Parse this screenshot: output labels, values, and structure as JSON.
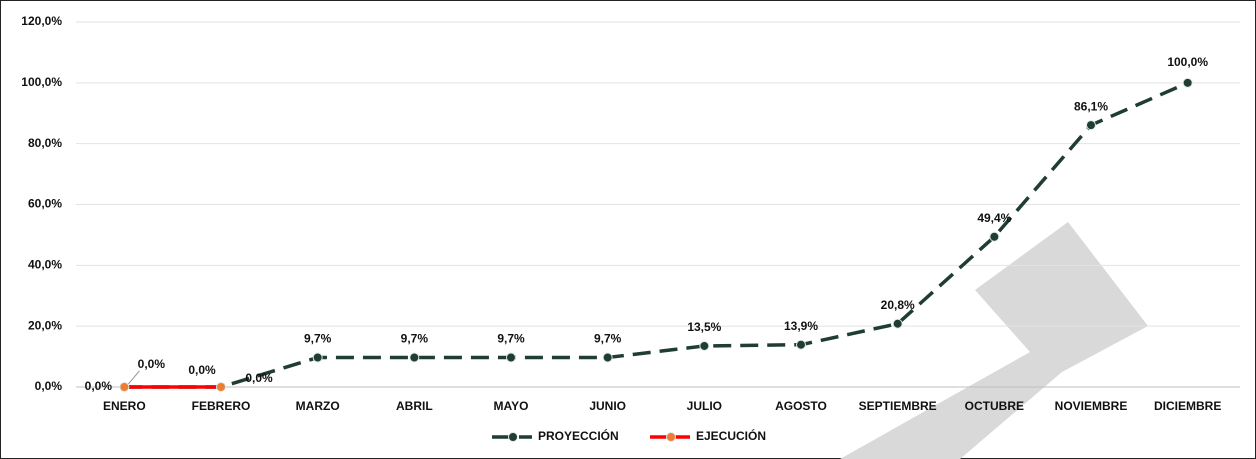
{
  "chart_data": {
    "type": "line",
    "categories": [
      "ENERO",
      "FEBRERO",
      "MARZO",
      "ABRIL",
      "MAYO",
      "JUNIO",
      "JULIO",
      "AGOSTO",
      "SEPTIEMBRE",
      "OCTUBRE",
      "NOVIEMBRE",
      "DICIEMBRE"
    ],
    "series": [
      {
        "name": "PROYECCIÓN",
        "color": "#1f3d33",
        "marker_color": "#1f3d33",
        "dashed": true,
        "values": [
          0,
          0,
          9.7,
          9.7,
          9.7,
          9.7,
          13.5,
          13.9,
          20.8,
          49.4,
          86.1,
          100
        ],
        "value_labels": [
          "0,0%",
          "0,0%",
          "9,7%",
          "9,7%",
          "9,7%",
          "9,7%",
          "13,5%",
          "13,9%",
          "20,8%",
          "49,4%",
          "86,1%",
          "100,0%"
        ]
      },
      {
        "name": "EJECUCIÓN",
        "color": "#ff0000",
        "marker_color": "#ed7d31",
        "dashed": false,
        "values": [
          0,
          0,
          null,
          null,
          null,
          null,
          null,
          null,
          null,
          null,
          null,
          null
        ],
        "value_labels": [
          "0,0%",
          "0,0%",
          null,
          null,
          null,
          null,
          null,
          null,
          null,
          null,
          null,
          null
        ]
      }
    ],
    "ylim": [
      0,
      120
    ],
    "yticks": [
      {
        "value": 0,
        "label": "0,0%"
      },
      {
        "value": 20,
        "label": "20,0%"
      },
      {
        "value": 40,
        "label": "40,0%"
      },
      {
        "value": 60,
        "label": "60,0%"
      },
      {
        "value": 80,
        "label": "80,0%"
      },
      {
        "value": 100,
        "label": "100,0%"
      },
      {
        "value": 120,
        "label": "120,0%"
      }
    ],
    "grid": true,
    "legend": "bottom"
  }
}
